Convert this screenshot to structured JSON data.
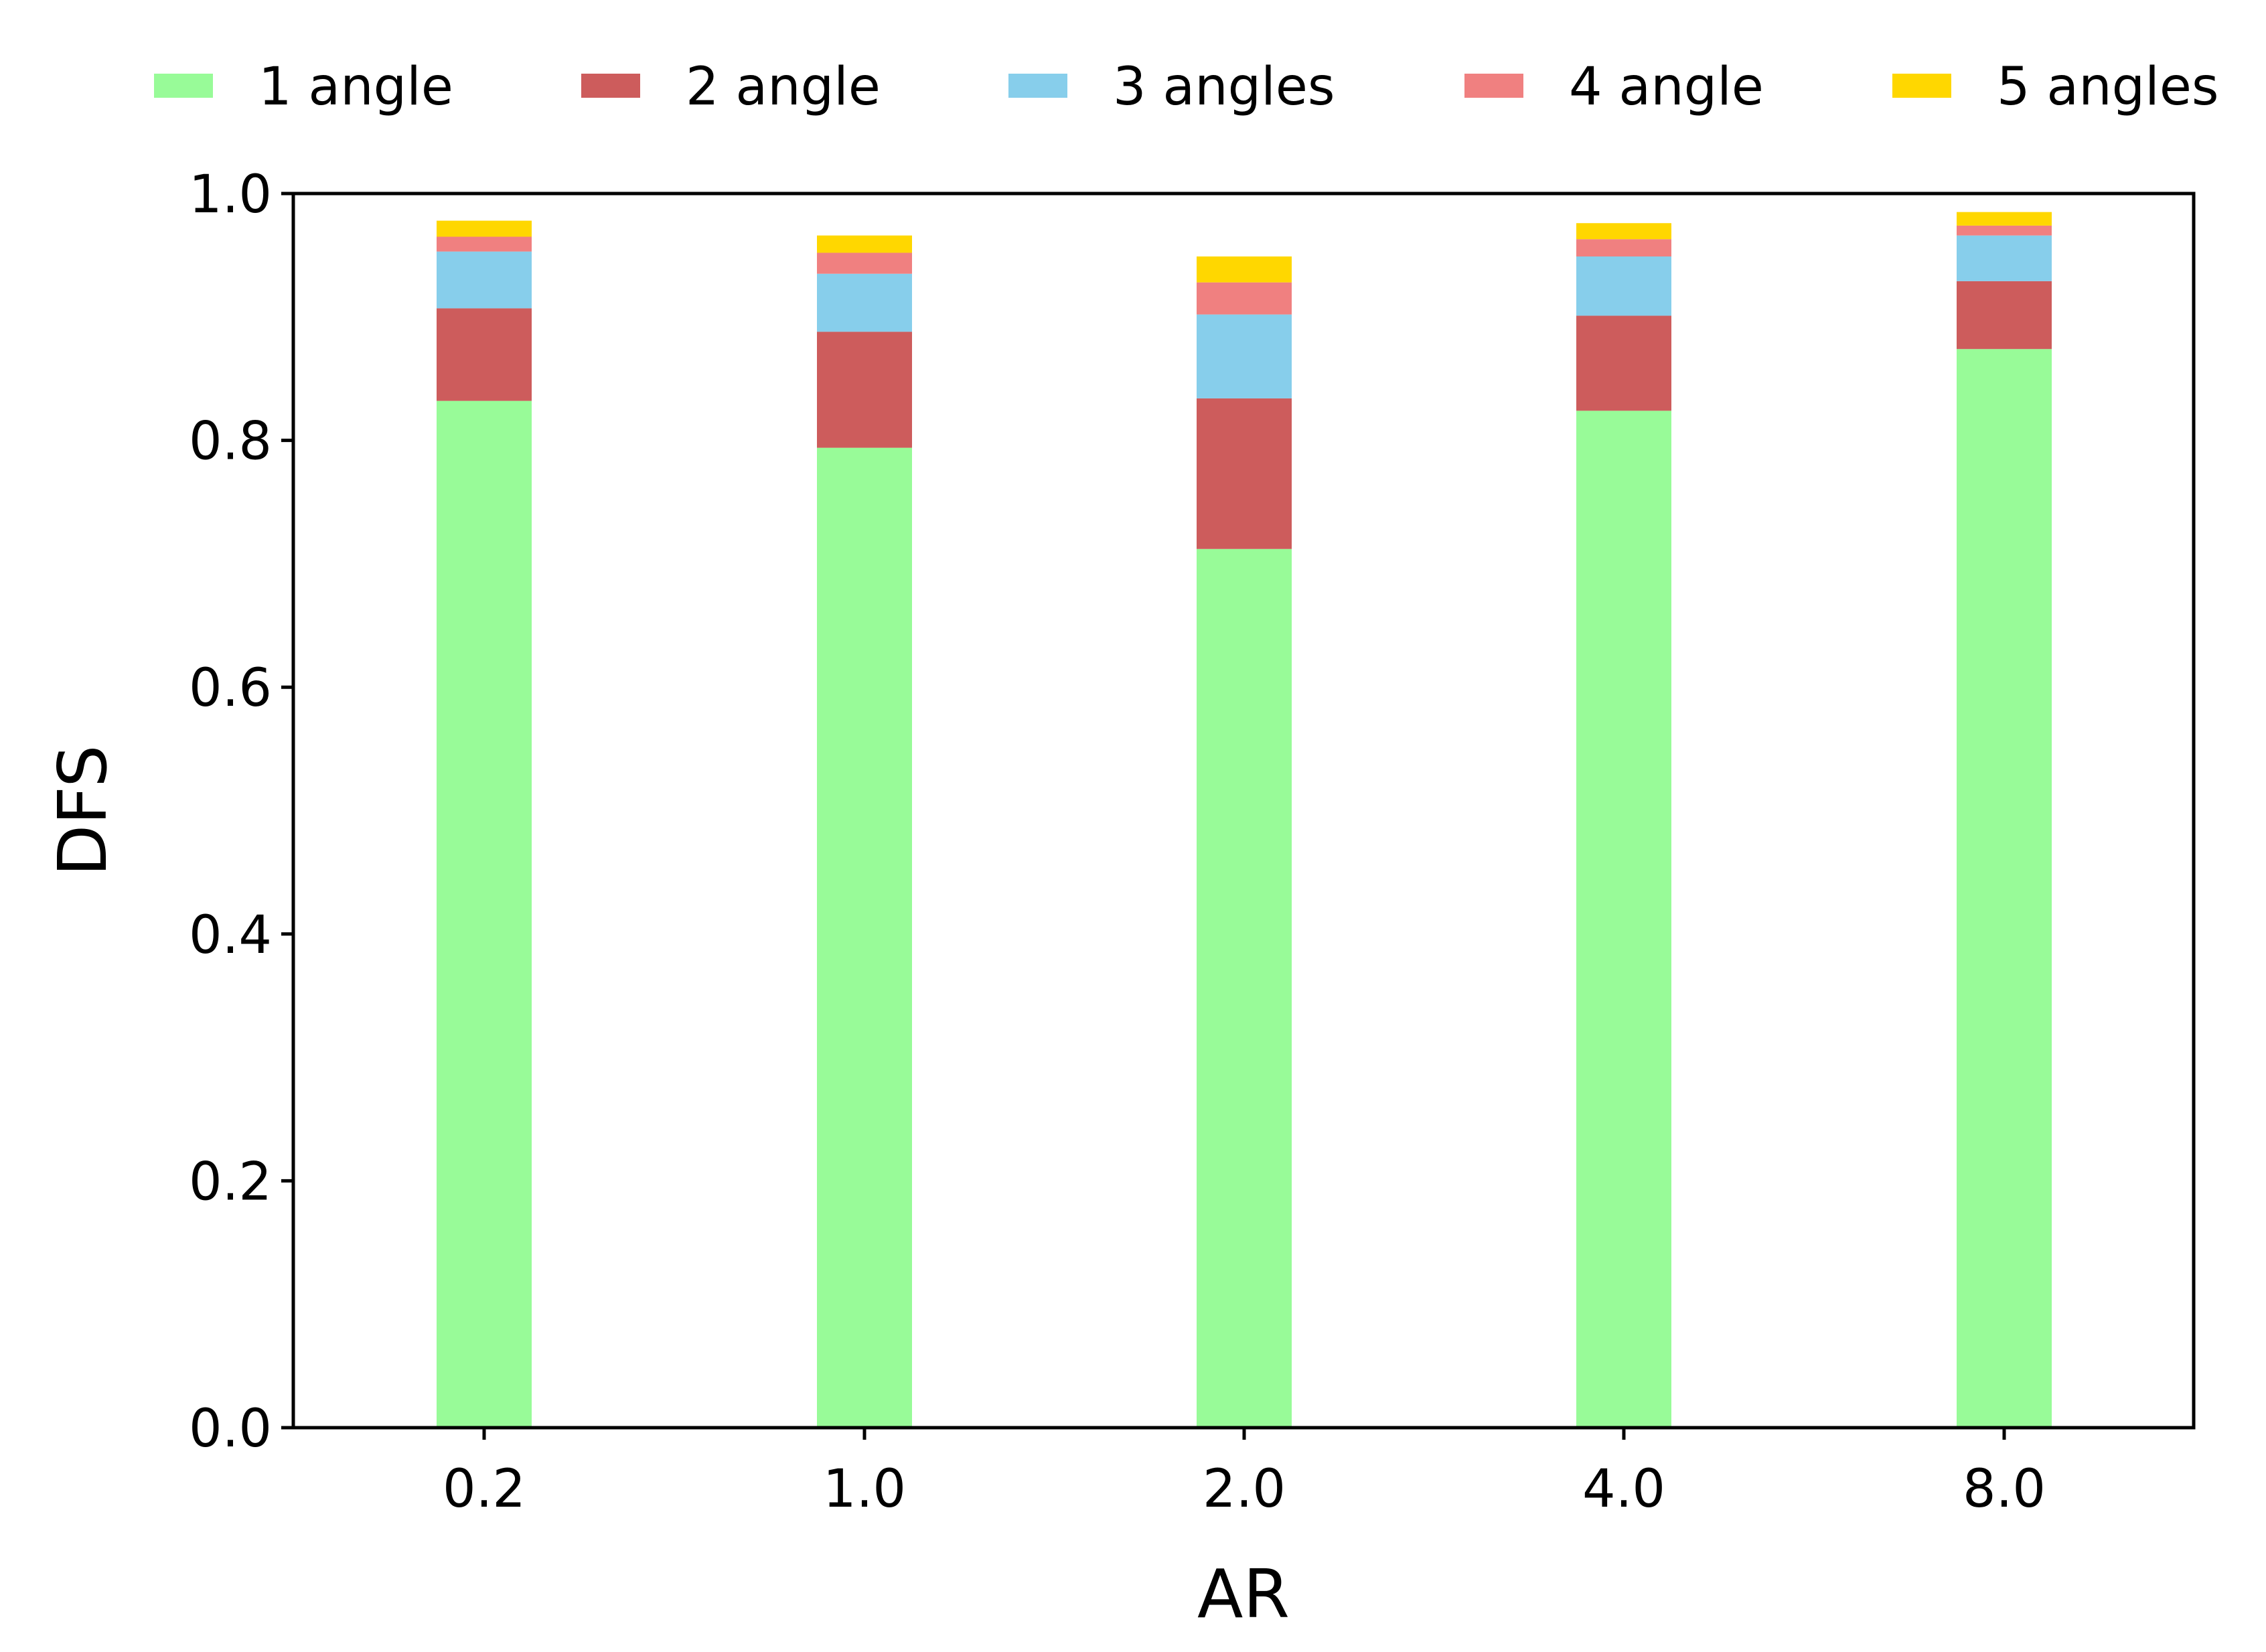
{
  "chart_data": {
    "type": "bar",
    "stacked": true,
    "title": "",
    "xlabel": "AR",
    "ylabel": "DFS",
    "ylim": [
      0.0,
      1.0
    ],
    "yticks": [
      "0.0",
      "0.2",
      "0.4",
      "0.6",
      "0.8",
      "1.0"
    ],
    "categories": [
      "0.2",
      "1.0",
      "2.0",
      "4.0",
      "8.0"
    ],
    "legend_position": "top",
    "series": [
      {
        "name": "1 angle",
        "color": "#98FB98",
        "values": [
          0.832,
          0.794,
          0.712,
          0.824,
          0.874
        ]
      },
      {
        "name": "2 angle",
        "color": "#CD5C5C",
        "values": [
          0.075,
          0.094,
          0.122,
          0.077,
          0.055
        ]
      },
      {
        "name": "3 angles",
        "color": "#87CEEB",
        "values": [
          0.046,
          0.047,
          0.068,
          0.048,
          0.037
        ]
      },
      {
        "name": "4 angle",
        "color": "#F08080",
        "values": [
          0.012,
          0.017,
          0.026,
          0.014,
          0.008
        ]
      },
      {
        "name": "5 angles",
        "color": "#FFD700",
        "values": [
          0.013,
          0.014,
          0.021,
          0.013,
          0.011
        ]
      }
    ]
  }
}
